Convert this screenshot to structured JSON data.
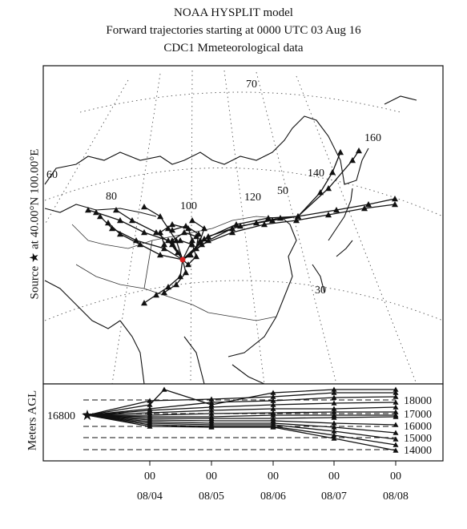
{
  "title": {
    "line1": "NOAA HYSPLIT model",
    "line2": "Forward trajectories starting at 0000 UTC 03 Aug 16",
    "line3": "CDC1 Mmeteorological data"
  },
  "map": {
    "source_label": "Source ★ at 40.00°N 100.00°E",
    "lat_labels": [
      "70",
      "50",
      "30"
    ],
    "lon_labels": [
      "60",
      "80",
      "100",
      "120",
      "140",
      "160"
    ]
  },
  "height_panel": {
    "ylabel": "Meters AGL",
    "start_label": "16800",
    "levels": [
      "18000",
      "17000",
      "16000",
      "15000",
      "14000"
    ],
    "x_ticks_top": [
      "00",
      "00",
      "00",
      "00",
      "00"
    ],
    "x_ticks_bottom": [
      "08/04",
      "08/05",
      "08/06",
      "08/07",
      "08/08"
    ]
  },
  "colors": {
    "lines": "#111111",
    "source_marker": "#d62020",
    "grid": "#555555"
  }
}
